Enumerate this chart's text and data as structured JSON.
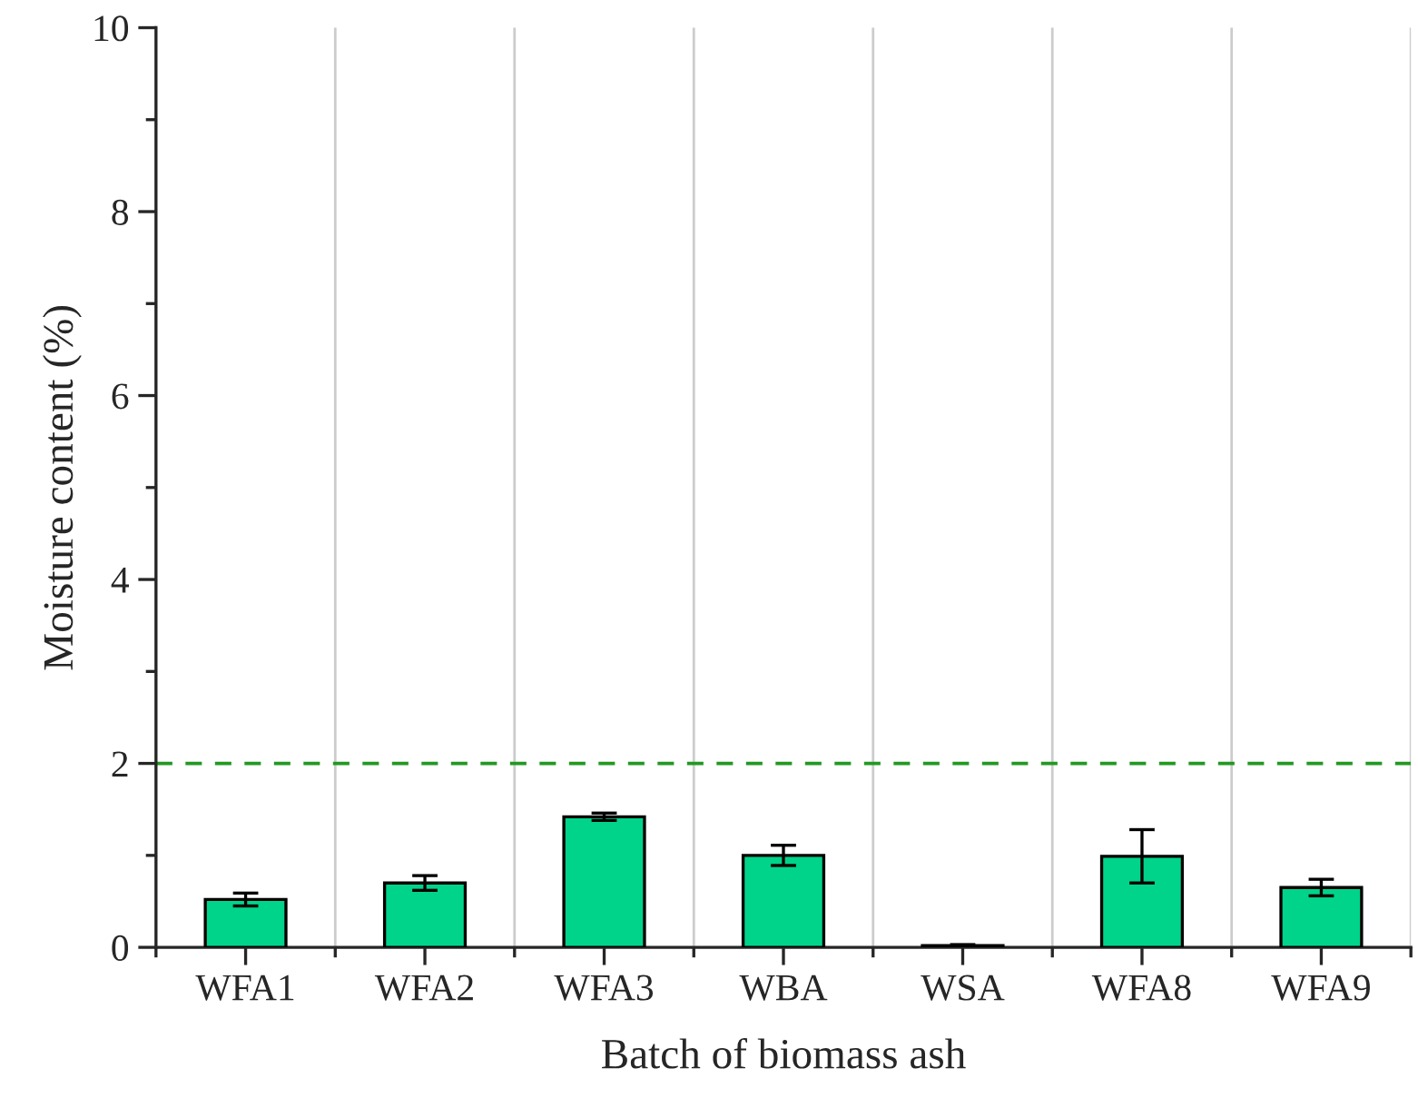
{
  "chart_data": {
    "type": "bar",
    "xlabel": "Batch of biomass ash",
    "ylabel": "Moisture content (%)",
    "categories": [
      "WFA1",
      "WFA2",
      "WFA3",
      "WBA",
      "WSA",
      "WFA8",
      "WFA9"
    ],
    "values": [
      0.52,
      0.7,
      1.42,
      1.0,
      0.02,
      0.99,
      0.65
    ],
    "errors": [
      0.07,
      0.08,
      0.04,
      0.11,
      0.01,
      0.29,
      0.09
    ],
    "color": "#00d48a",
    "ylim": [
      0,
      10
    ],
    "yticks": [
      0,
      2,
      4,
      6,
      8,
      10
    ],
    "ref_lines": [
      {
        "axis": "y",
        "value": 2,
        "color": "#229922",
        "line_style": "dashed"
      }
    ],
    "grid": "x"
  }
}
